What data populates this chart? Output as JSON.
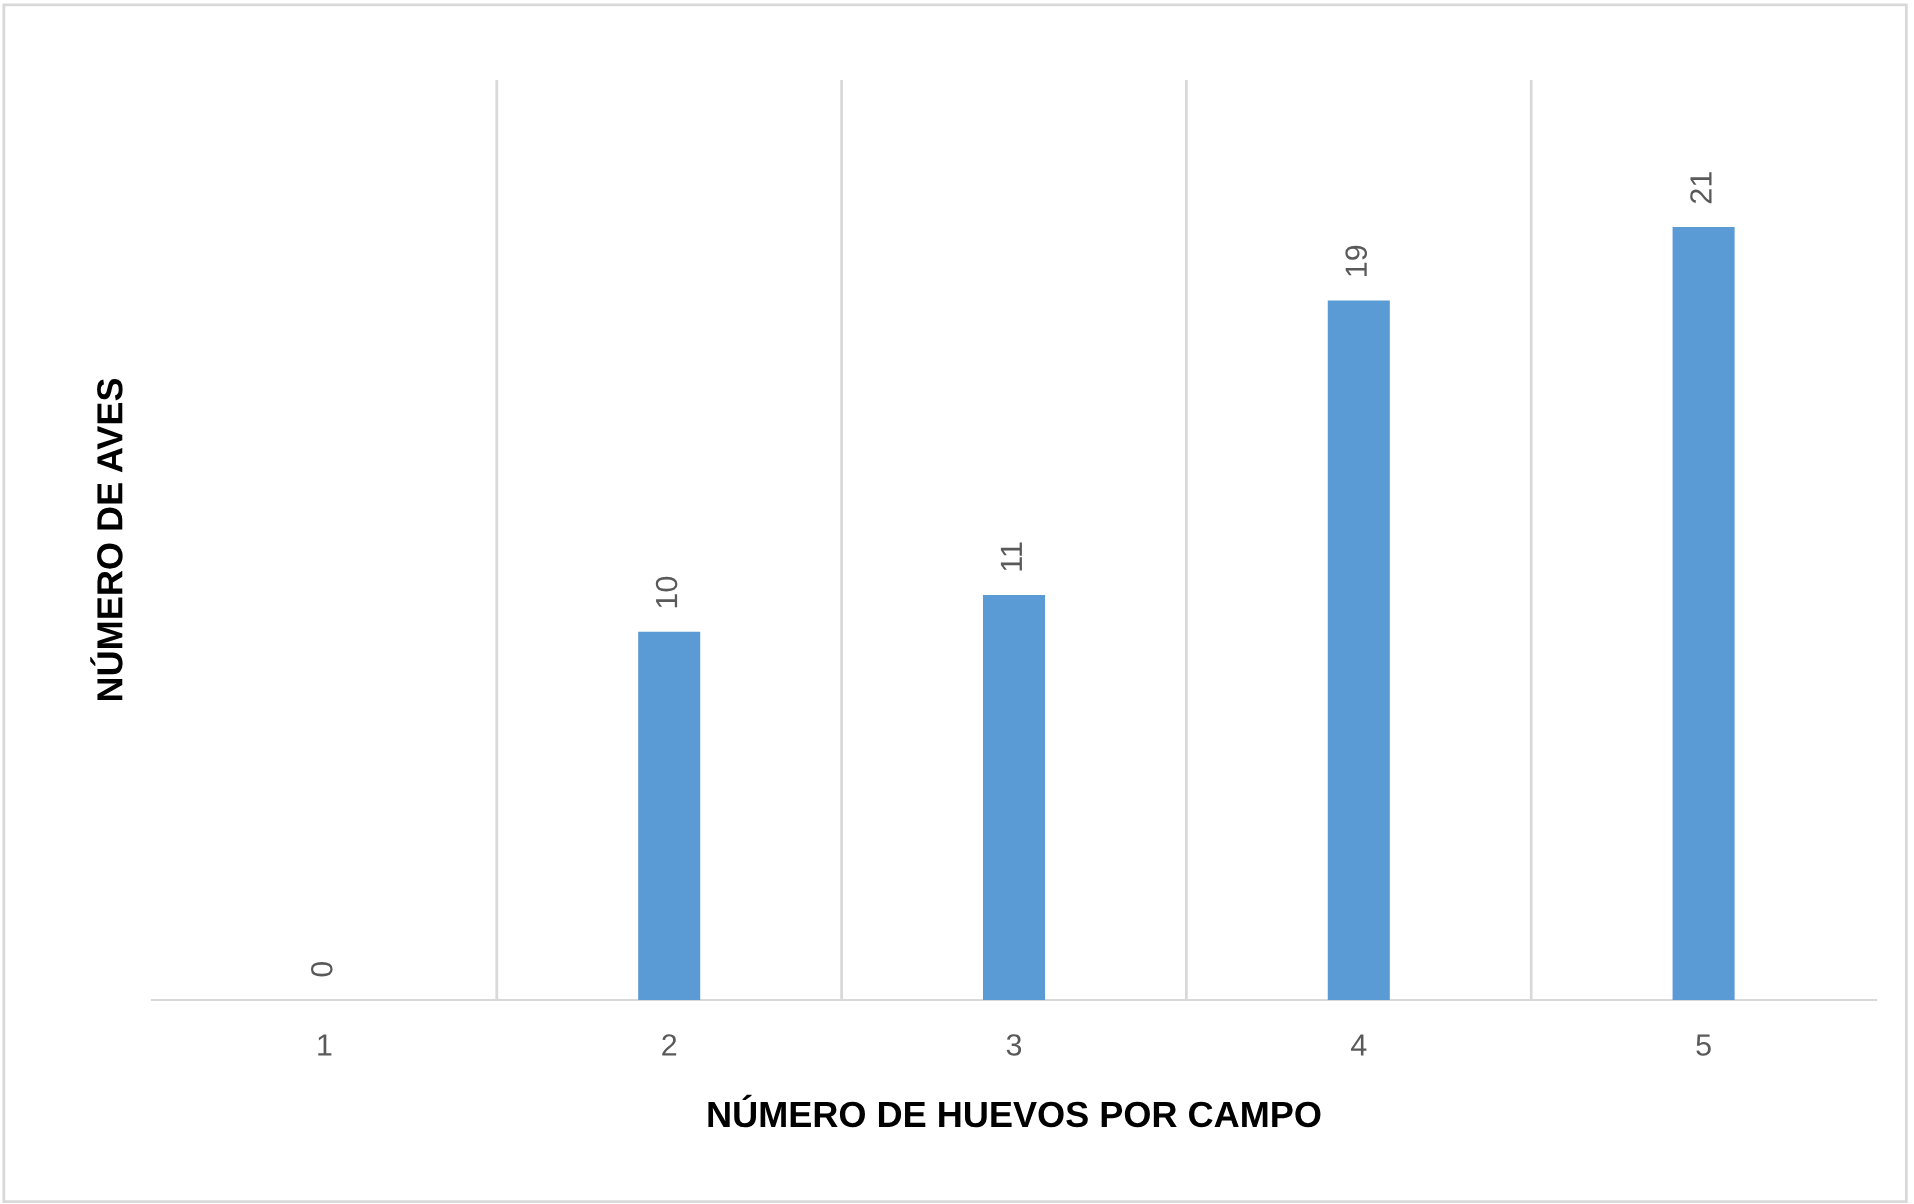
{
  "chart_data": {
    "type": "bar",
    "xlabel": "NÚMERO DE HUEVOS POR CAMPO",
    "ylabel": "NÚMERO DE AVES",
    "categories": [
      "1",
      "2",
      "3",
      "4",
      "5"
    ],
    "values": [
      0,
      10,
      11,
      19,
      21
    ],
    "color": "#5b9bd5",
    "data_labels": true,
    "grid": "x"
  }
}
